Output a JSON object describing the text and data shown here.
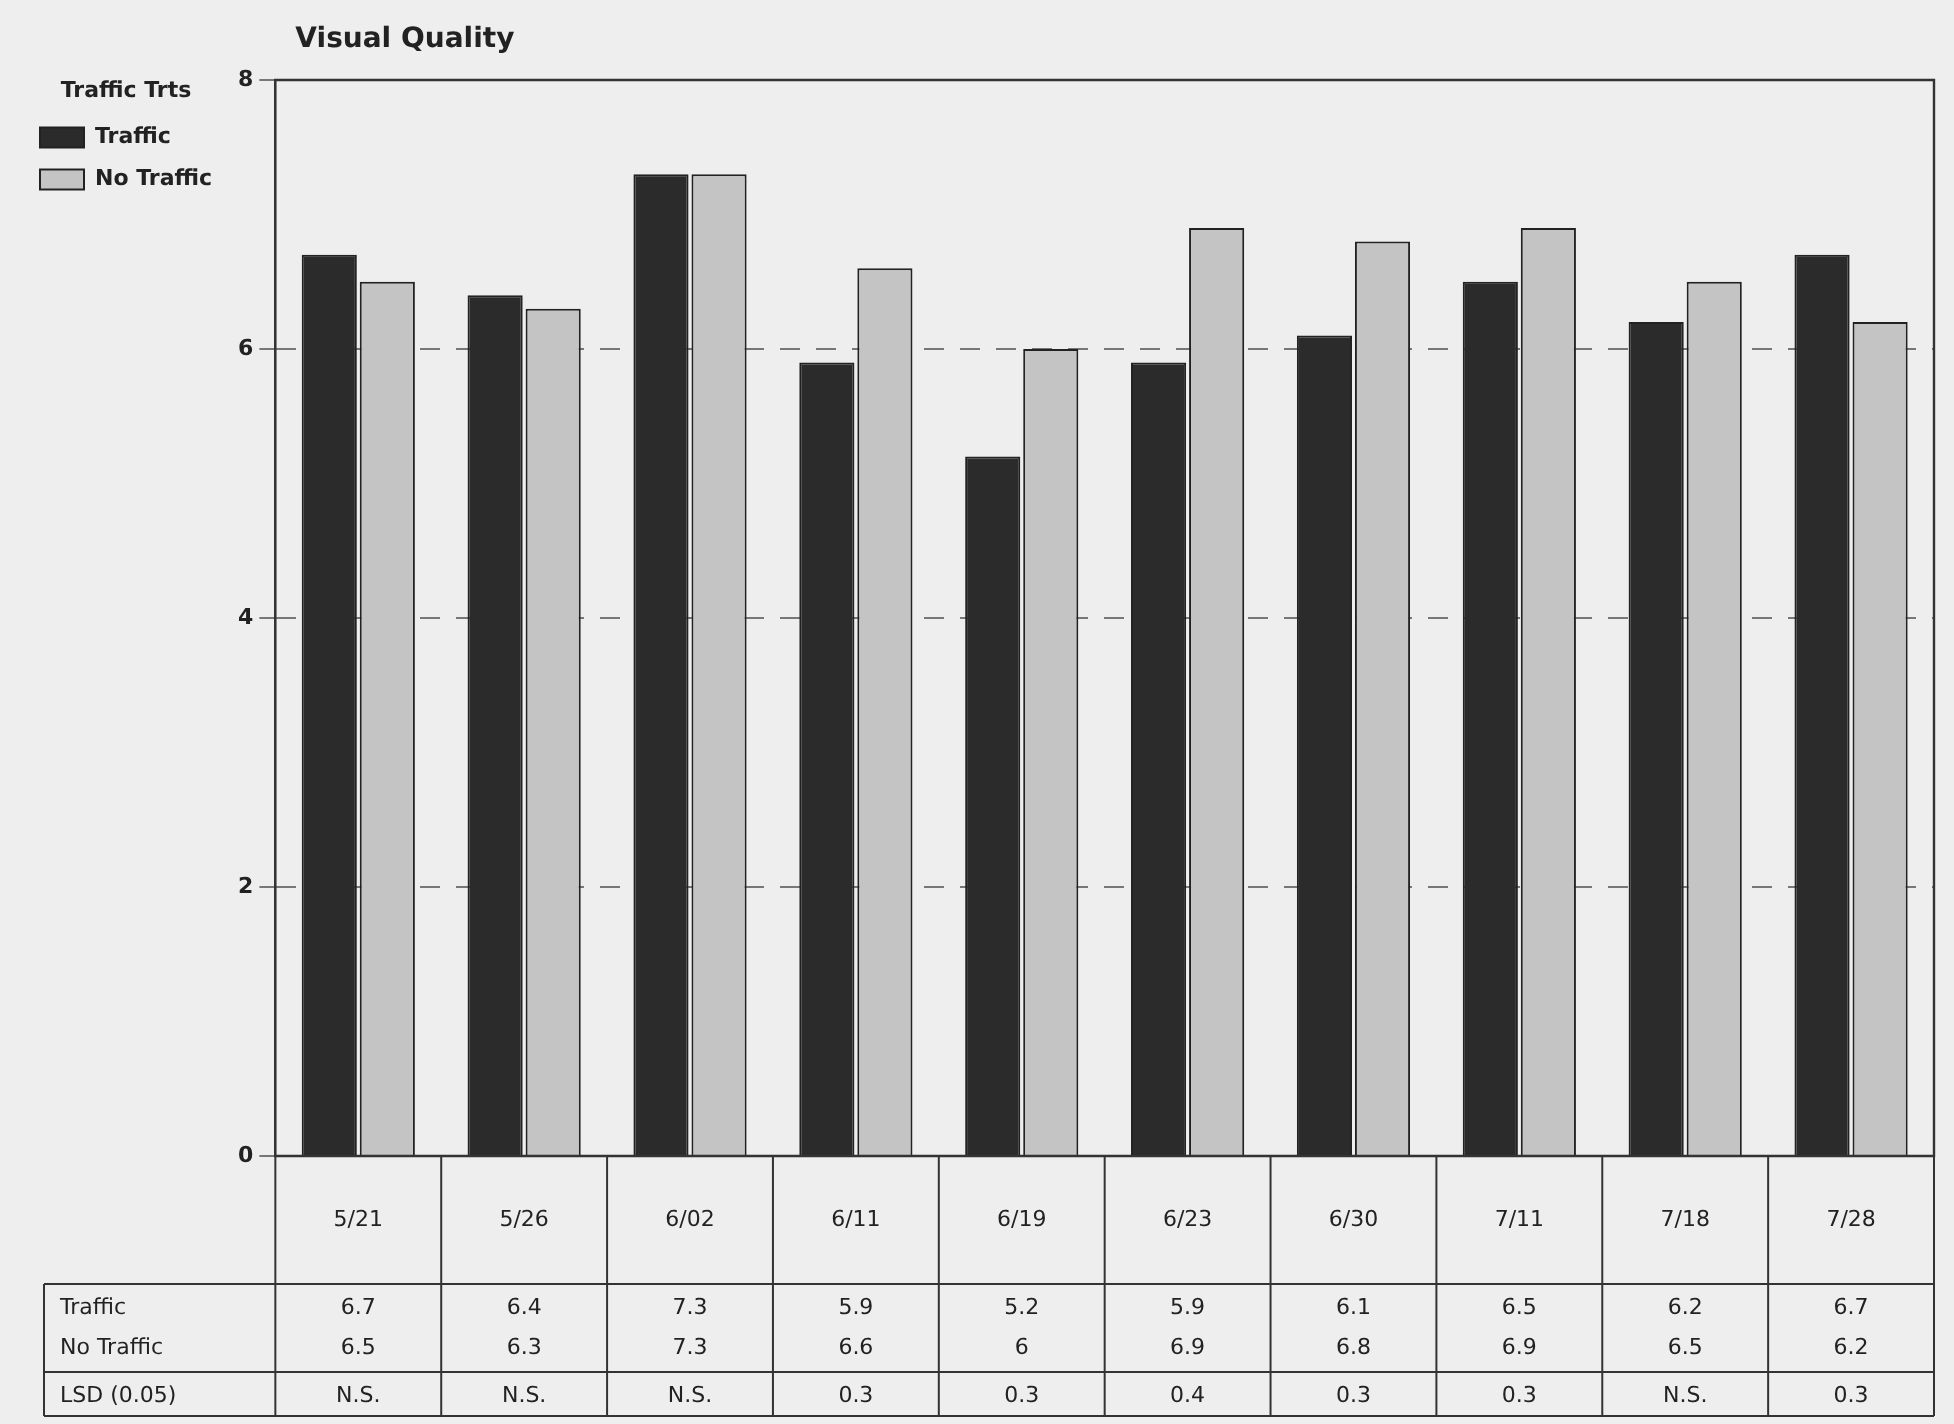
{
  "chart_data": {
    "type": "bar",
    "title": "Visual Quality",
    "legend_title": "Traffic Trts",
    "categories": [
      "5/21",
      "5/26",
      "6/02",
      "6/11",
      "6/19",
      "6/23",
      "6/30",
      "7/11",
      "7/18",
      "7/28"
    ],
    "series": [
      {
        "name": "Traffic",
        "color": "#2b2b2b",
        "values": [
          6.7,
          6.4,
          7.3,
          5.9,
          5.2,
          5.9,
          6.1,
          6.5,
          6.2,
          6.7
        ]
      },
      {
        "name": "No Traffic",
        "color": "#c4c4c4",
        "values": [
          6.5,
          6.3,
          7.3,
          6.6,
          6,
          6.9,
          6.8,
          6.9,
          6.5,
          6.2
        ]
      }
    ],
    "ylim": [
      0,
      8
    ],
    "yticks": [
      0,
      2,
      4,
      6,
      8
    ],
    "grid": "y",
    "line_style": "dashed",
    "legend": "top left",
    "data_labels": true,
    "annotations": [
      "LSD (0.05)",
      "N.S.",
      "N.S.",
      "N.S.",
      "0.3",
      "0.3",
      "0.4",
      "0.3",
      "0.3",
      "N.S.",
      "0.3"
    ]
  }
}
